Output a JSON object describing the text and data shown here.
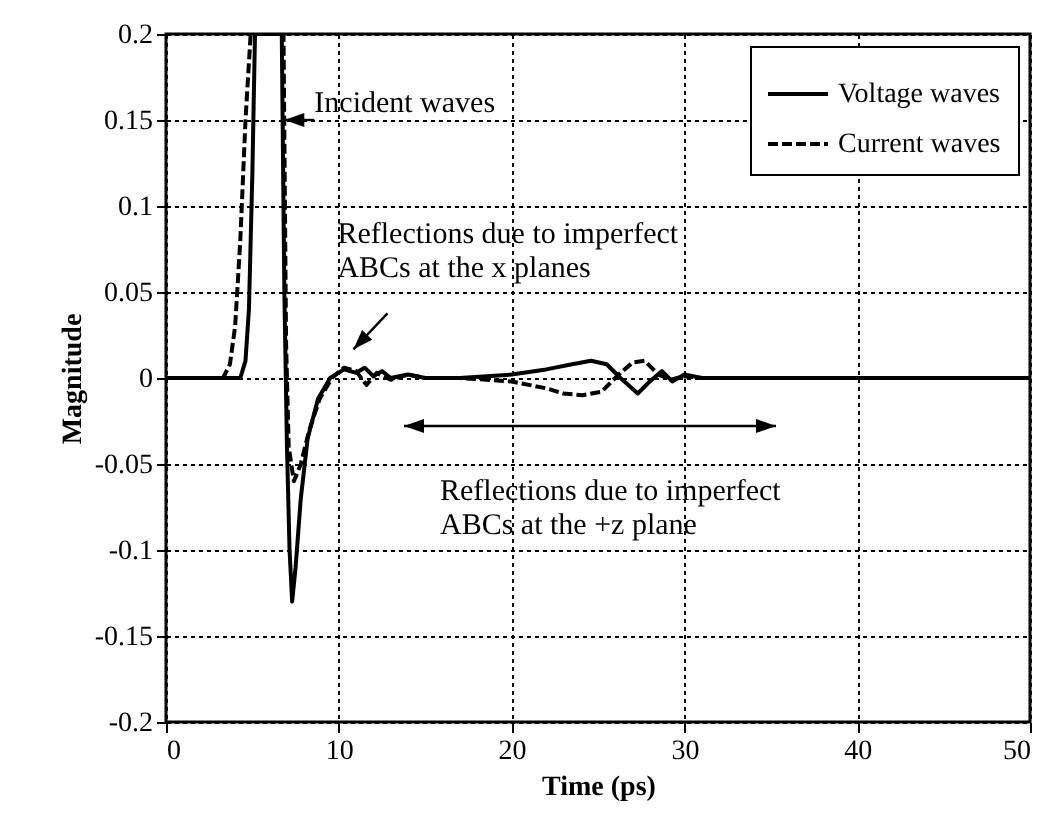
{
  "chart_data": {
    "type": "line",
    "xlabel": "Time (ps)",
    "ylabel": "Magnitude",
    "xlim": [
      0,
      50
    ],
    "xticks": [
      0,
      10,
      20,
      30,
      40,
      50
    ],
    "ylim": [
      -0.2,
      0.2
    ],
    "yticks": [
      -0.2,
      -0.15,
      -0.1,
      -0.05,
      0,
      0.05,
      0.1,
      0.15,
      0.2
    ],
    "grid": true,
    "legend": "top right",
    "marker": "none",
    "series": [
      {
        "name": "Voltage waves",
        "color": "#000000",
        "line_style": "solid",
        "x": [
          0,
          4.3,
          4.6,
          4.8,
          5.0,
          5.15,
          6.7,
          6.85,
          7.0,
          7.15,
          7.3,
          7.5,
          7.8,
          8.2,
          8.8,
          9.5,
          10.3,
          11,
          11.5,
          12,
          12.5,
          13,
          14,
          15,
          17,
          20,
          22,
          23.5,
          24.6,
          25.5,
          26.3,
          27.3,
          28,
          28.7,
          29.3,
          30,
          31,
          33,
          35,
          40,
          45,
          50
        ],
        "values": [
          0,
          0,
          0.01,
          0.04,
          0.12,
          0.2,
          0.2,
          0.05,
          -0.04,
          -0.1,
          -0.13,
          -0.11,
          -0.07,
          -0.035,
          -0.012,
          0,
          0.005,
          0.003,
          0.006,
          0.001,
          0.004,
          0,
          0.002,
          0,
          0,
          0.002,
          0.005,
          0.008,
          0.01,
          0.008,
          0,
          -0.009,
          -0.002,
          0.004,
          -0.002,
          0.002,
          0,
          0,
          0,
          0,
          0,
          0
        ]
      },
      {
        "name": "Current waves",
        "color": "#000000",
        "line_style": "dashed",
        "x": [
          0,
          3.3,
          3.7,
          4.0,
          4.3,
          4.6,
          4.9,
          6.8,
          6.95,
          7.1,
          7.4,
          7.8,
          8.3,
          8.9,
          9.6,
          10.3,
          11,
          11.6,
          12.2,
          13,
          14,
          15,
          17,
          20,
          22,
          23,
          24.1,
          25.2,
          26.2,
          27.0,
          27.7,
          28.5,
          29.2,
          30,
          31,
          33,
          35,
          40,
          45,
          50
        ],
        "values": [
          0,
          0,
          0.008,
          0.03,
          0.08,
          0.15,
          0.2,
          0.2,
          0.02,
          -0.04,
          -0.06,
          -0.05,
          -0.03,
          -0.012,
          0,
          0.006,
          0.004,
          -0.004,
          0.003,
          -0.001,
          0.002,
          0,
          0,
          -0.002,
          -0.006,
          -0.009,
          -0.01,
          -0.008,
          0.002,
          0.009,
          0.01,
          0.002,
          -0.001,
          0.001,
          0,
          0,
          0,
          0,
          0,
          0
        ]
      }
    ],
    "annotations": [
      {
        "text": "Incident waves",
        "x": 6.5,
        "y": 0.15
      },
      {
        "text": "Reflections due to imperfect\nABCs at the x planes",
        "x": 10.5,
        "y": 0.012
      },
      "Reflections due to imperfect\nABCs at the +z plane"
    ]
  }
}
